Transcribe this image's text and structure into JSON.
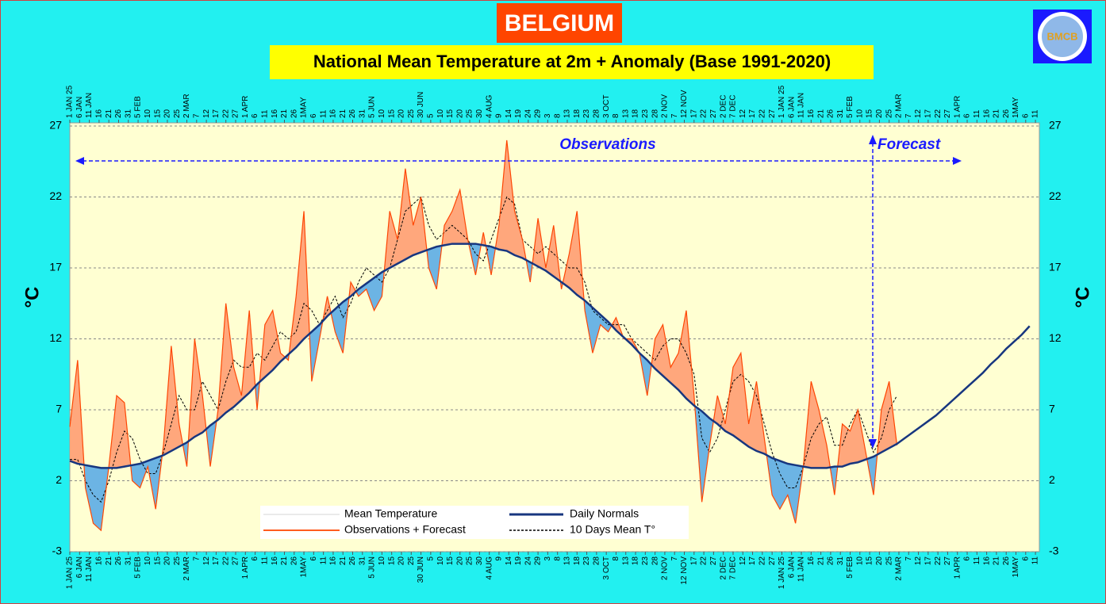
{
  "chart_data": {
    "type": "line",
    "title": "BELGIUM",
    "subtitle": "National Mean Temperature at 2m + Anomaly (Base 1991-2020)",
    "logo": "BMCB",
    "ylabel": "°C",
    "annotations": [
      "Observations",
      "Forecast"
    ],
    "grid": true,
    "fill_above": "#ffa77c",
    "fill_below": "#6cb4e4",
    "xlim": [
      0,
      497
    ],
    "ylim": [
      -3,
      27
    ],
    "yticks": [
      -3,
      2,
      7,
      12,
      17,
      22,
      27
    ],
    "xticks": [
      {
        "value": 0,
        "label": "1 JAN 25"
      },
      {
        "value": 5,
        "label": "6 JAN"
      },
      {
        "value": 10,
        "label": "11 JAN"
      },
      {
        "value": 15,
        "label": "16"
      },
      {
        "value": 20,
        "label": "21"
      },
      {
        "value": 25,
        "label": "26"
      },
      {
        "value": 30,
        "label": "31"
      },
      {
        "value": 35,
        "label": "5 FEB"
      },
      {
        "value": 40,
        "label": "10"
      },
      {
        "value": 45,
        "label": "15"
      },
      {
        "value": 50,
        "label": "20"
      },
      {
        "value": 55,
        "label": "25"
      },
      {
        "value": 60,
        "label": "2 MAR"
      },
      {
        "value": 65,
        "label": "7"
      },
      {
        "value": 70,
        "label": "12"
      },
      {
        "value": 75,
        "label": "17"
      },
      {
        "value": 80,
        "label": "22"
      },
      {
        "value": 85,
        "label": "27"
      },
      {
        "value": 90,
        "label": "1 APR"
      },
      {
        "value": 95,
        "label": "6"
      },
      {
        "value": 100,
        "label": "11"
      },
      {
        "value": 105,
        "label": "16"
      },
      {
        "value": 110,
        "label": "21"
      },
      {
        "value": 115,
        "label": "26"
      },
      {
        "value": 120,
        "label": "1MAY"
      },
      {
        "value": 125,
        "label": "6"
      },
      {
        "value": 130,
        "label": "11"
      },
      {
        "value": 135,
        "label": "16"
      },
      {
        "value": 140,
        "label": "21"
      },
      {
        "value": 145,
        "label": "26"
      },
      {
        "value": 150,
        "label": "31"
      },
      {
        "value": 155,
        "label": "5 JUN"
      },
      {
        "value": 160,
        "label": "10"
      },
      {
        "value": 165,
        "label": "15"
      },
      {
        "value": 170,
        "label": "20"
      },
      {
        "value": 175,
        "label": "25"
      },
      {
        "value": 180,
        "label": "30 JUN"
      },
      {
        "value": 185,
        "label": "5"
      },
      {
        "value": 190,
        "label": "10"
      },
      {
        "value": 195,
        "label": "15"
      },
      {
        "value": 200,
        "label": "20"
      },
      {
        "value": 205,
        "label": "25"
      },
      {
        "value": 210,
        "label": "30"
      },
      {
        "value": 215,
        "label": "4 AUG"
      },
      {
        "value": 220,
        "label": "9"
      },
      {
        "value": 225,
        "label": "14"
      },
      {
        "value": 230,
        "label": "19"
      },
      {
        "value": 235,
        "label": "24"
      },
      {
        "value": 240,
        "label": "29"
      },
      {
        "value": 245,
        "label": "3"
      },
      {
        "value": 250,
        "label": "8"
      },
      {
        "value": 255,
        "label": "13"
      },
      {
        "value": 260,
        "label": "18"
      },
      {
        "value": 265,
        "label": "23"
      },
      {
        "value": 270,
        "label": "28"
      },
      {
        "value": 275,
        "label": "3 OCT"
      },
      {
        "value": 280,
        "label": "8"
      },
      {
        "value": 285,
        "label": "13"
      },
      {
        "value": 290,
        "label": "18"
      },
      {
        "value": 295,
        "label": "23"
      },
      {
        "value": 300,
        "label": "28"
      },
      {
        "value": 305,
        "label": "2 NOV"
      },
      {
        "value": 310,
        "label": "7"
      },
      {
        "value": 315,
        "label": "12 NOV"
      },
      {
        "value": 320,
        "label": "17"
      },
      {
        "value": 325,
        "label": "22"
      },
      {
        "value": 330,
        "label": "27"
      },
      {
        "value": 335,
        "label": "2 DEC"
      },
      {
        "value": 340,
        "label": "7 DEC"
      },
      {
        "value": 345,
        "label": "12"
      },
      {
        "value": 350,
        "label": "17"
      },
      {
        "value": 355,
        "label": "22"
      },
      {
        "value": 360,
        "label": "27"
      },
      {
        "value": 365,
        "label": "1 JAN 25"
      },
      {
        "value": 370,
        "label": "6 JAN"
      },
      {
        "value": 375,
        "label": "11 JAN"
      },
      {
        "value": 380,
        "label": "16"
      },
      {
        "value": 385,
        "label": "21"
      },
      {
        "value": 390,
        "label": "26"
      },
      {
        "value": 395,
        "label": "31"
      },
      {
        "value": 400,
        "label": "5 FEB"
      },
      {
        "value": 405,
        "label": "10"
      },
      {
        "value": 410,
        "label": "15"
      },
      {
        "value": 415,
        "label": "20"
      },
      {
        "value": 420,
        "label": "25"
      },
      {
        "value": 425,
        "label": "2 MAR"
      },
      {
        "value": 430,
        "label": "7"
      },
      {
        "value": 435,
        "label": "12"
      },
      {
        "value": 440,
        "label": "17"
      },
      {
        "value": 445,
        "label": "22"
      },
      {
        "value": 450,
        "label": "27"
      },
      {
        "value": 455,
        "label": "1 APR"
      },
      {
        "value": 460,
        "label": "6"
      },
      {
        "value": 465,
        "label": "11"
      },
      {
        "value": 470,
        "label": "16"
      },
      {
        "value": 475,
        "label": "21"
      },
      {
        "value": 480,
        "label": "26"
      },
      {
        "value": 485,
        "label": "1MAY"
      },
      {
        "value": 490,
        "label": "6"
      },
      {
        "value": 495,
        "label": "11"
      }
    ],
    "x": [
      0,
      4,
      8,
      12,
      16,
      20,
      24,
      28,
      32,
      36,
      40,
      44,
      48,
      52,
      56,
      60,
      64,
      68,
      72,
      76,
      80,
      84,
      88,
      92,
      96,
      100,
      104,
      108,
      112,
      116,
      120,
      124,
      128,
      132,
      136,
      140,
      144,
      148,
      152,
      156,
      160,
      164,
      168,
      172,
      176,
      180,
      184,
      188,
      192,
      196,
      200,
      204,
      208,
      212,
      216,
      220,
      224,
      228,
      232,
      236,
      240,
      244,
      248,
      252,
      256,
      260,
      264,
      268,
      272,
      276,
      280,
      284,
      288,
      292,
      296,
      300,
      304,
      308,
      312,
      316,
      320,
      324,
      328,
      332,
      336,
      340,
      344,
      348,
      352,
      356,
      360,
      364,
      368,
      372,
      376,
      380,
      384,
      388,
      392,
      396,
      400,
      404,
      408,
      412,
      416,
      420,
      424,
      428,
      432,
      436,
      440,
      444,
      448,
      452,
      456,
      460,
      464,
      468,
      472,
      476,
      480,
      484,
      488,
      492
    ],
    "series": [
      {
        "name": "Mean Temperature",
        "color": "#e4e4e4",
        "width": 1,
        "values": [
          5.8,
          10.5,
          1.5,
          -1,
          -1.5,
          3,
          8,
          7.5,
          2,
          1.5,
          3,
          0,
          4.5,
          11.5,
          6,
          3,
          12,
          8,
          3,
          7,
          14.5,
          10,
          8,
          14,
          7,
          13,
          14,
          11,
          10.5,
          15,
          21,
          9,
          12,
          15,
          12.5,
          11,
          16,
          15,
          15.5,
          14,
          15,
          21,
          19,
          24,
          20,
          22,
          17,
          15.5,
          20,
          21,
          22.5,
          19,
          16.5,
          19.5,
          16.5,
          20,
          26,
          21,
          19,
          16,
          20.5,
          17,
          20,
          15.5,
          18,
          21,
          14,
          11,
          13,
          12.5,
          13.5,
          12,
          12,
          11,
          8,
          12,
          13,
          10,
          11,
          14,
          8,
          0.5,
          4.5,
          8,
          6,
          10,
          11,
          6,
          9,
          5,
          1,
          0,
          1,
          -1,
          3,
          9,
          7,
          4.5,
          1,
          6,
          5.5,
          7,
          4,
          1,
          null,
          null,
          null,
          null,
          null,
          null,
          null,
          null,
          null,
          null,
          null,
          null,
          null,
          null,
          null,
          null,
          null,
          null,
          null,
          null
        ]
      },
      {
        "name": "Observations + Forecast",
        "color": "#ff4500",
        "width": 1.2,
        "values": [
          5.8,
          10.5,
          1.5,
          -1,
          -1.5,
          3,
          8,
          7.5,
          2,
          1.5,
          3,
          0,
          4.5,
          11.5,
          6,
          3,
          12,
          8,
          3,
          7,
          14.5,
          10,
          8,
          14,
          7,
          13,
          14,
          11,
          10.5,
          15,
          21,
          9,
          12,
          15,
          12.5,
          11,
          16,
          15,
          15.5,
          14,
          15,
          21,
          19,
          24,
          20,
          22,
          17,
          15.5,
          20,
          21,
          22.5,
          19,
          16.5,
          19.5,
          16.5,
          20,
          26,
          21,
          19,
          16,
          20.5,
          17,
          20,
          15.5,
          18,
          21,
          14,
          11,
          13,
          12.5,
          13.5,
          12,
          12,
          11,
          8,
          12,
          13,
          10,
          11,
          14,
          8,
          0.5,
          4.5,
          8,
          6,
          10,
          11,
          6,
          9,
          5,
          1,
          0,
          1,
          -1,
          3,
          9,
          7,
          4.5,
          1,
          6,
          5.5,
          7,
          4,
          1,
          7,
          9,
          4.5,
          null,
          null,
          null,
          null,
          null,
          null,
          null,
          null,
          null,
          null,
          null,
          null,
          null,
          null,
          null,
          null,
          null
        ]
      },
      {
        "name": "Daily Normals",
        "color": "#17367f",
        "width": 2.5,
        "values": [
          3.4,
          3.2,
          3.1,
          3.0,
          2.9,
          2.9,
          2.9,
          3.0,
          3.1,
          3.2,
          3.4,
          3.6,
          3.8,
          4.1,
          4.4,
          4.7,
          5.1,
          5.4,
          5.9,
          6.3,
          6.8,
          7.2,
          7.7,
          8.2,
          8.8,
          9.3,
          9.8,
          10.4,
          10.9,
          11.4,
          12.0,
          12.5,
          13.0,
          13.6,
          14.1,
          14.6,
          15.0,
          15.5,
          15.9,
          16.3,
          16.7,
          17.0,
          17.3,
          17.6,
          17.9,
          18.1,
          18.3,
          18.5,
          18.6,
          18.7,
          18.7,
          18.7,
          18.7,
          18.6,
          18.5,
          18.3,
          18.2,
          17.9,
          17.7,
          17.4,
          17.1,
          16.8,
          16.4,
          16.0,
          15.6,
          15.1,
          14.7,
          14.2,
          13.7,
          13.2,
          12.6,
          12.1,
          11.6,
          11.0,
          10.5,
          9.9,
          9.4,
          8.9,
          8.4,
          7.8,
          7.3,
          6.9,
          6.4,
          6.0,
          5.5,
          5.2,
          4.8,
          4.4,
          4.1,
          3.9,
          3.6,
          3.4,
          3.2,
          3.1,
          3.0,
          2.9,
          2.9,
          2.9,
          3.0,
          3.0,
          3.2,
          3.3,
          3.5,
          3.7,
          4.0,
          4.3,
          4.6,
          5.0,
          5.4,
          5.8,
          6.2,
          6.6,
          7.1,
          7.6,
          8.1,
          8.6,
          9.1,
          9.6,
          10.2,
          10.7,
          11.3,
          11.8,
          12.3,
          12.9
        ]
      },
      {
        "name": "10 Days Mean T°",
        "color": "#000000",
        "width": 1,
        "dash": true,
        "values": [
          3.5,
          3.5,
          2,
          1,
          0.5,
          2,
          4,
          5.5,
          5,
          3.5,
          2.5,
          2.5,
          4,
          6,
          8,
          7,
          7,
          9,
          8,
          7,
          9,
          10.5,
          10,
          10,
          11,
          10.5,
          11.5,
          12.5,
          12,
          12.5,
          14.5,
          14,
          13,
          14,
          15,
          13.5,
          14.5,
          16,
          17,
          16.5,
          16,
          17,
          19,
          21,
          21.5,
          22,
          20,
          19,
          19.5,
          20,
          19.5,
          19,
          18,
          17.5,
          19,
          20.5,
          22,
          21.5,
          19,
          18.5,
          18,
          18.5,
          18,
          17.5,
          17,
          17,
          16,
          14,
          13.5,
          13,
          13,
          13,
          12,
          11.5,
          11,
          10.5,
          11.5,
          12,
          12,
          11,
          9.5,
          5,
          4,
          5,
          7,
          9,
          9.5,
          9,
          8,
          6,
          4,
          2.5,
          1.5,
          1.5,
          3,
          5,
          6,
          6.5,
          4.5,
          4.5,
          6,
          7,
          5.5,
          4,
          5,
          7,
          8,
          null,
          null,
          null,
          null,
          null,
          null,
          null,
          null,
          null,
          null,
          null,
          null,
          null,
          null,
          null,
          null,
          null
        ]
      }
    ]
  }
}
